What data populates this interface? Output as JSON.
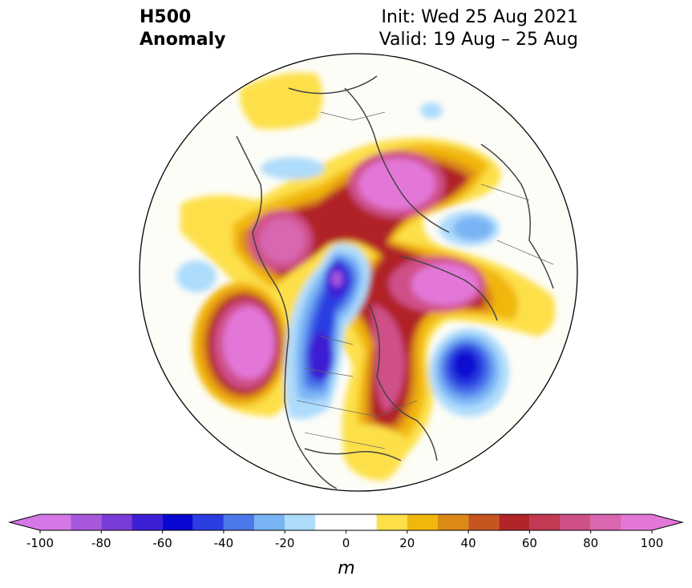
{
  "header": {
    "field_title": "H500",
    "field_subtitle": "Anomaly",
    "init_text": "Init: Wed 25 Aug 2021",
    "valid_text": "Valid: 19 Aug – 25 Aug"
  },
  "map": {
    "projection": "north-polar-stereographic"
  },
  "colorbar": {
    "levels": [
      -100,
      -90,
      -80,
      -70,
      -60,
      -50,
      -40,
      -30,
      -20,
      -10,
      10,
      20,
      30,
      40,
      50,
      60,
      70,
      80,
      90,
      100
    ],
    "colors": [
      "#d577e6",
      "#a858dc",
      "#7a3cd6",
      "#3d1fd4",
      "#0a07d2",
      "#2a3ee0",
      "#4d78ea",
      "#79b4f4",
      "#aedcfc",
      "#ffffff",
      "#fde04a",
      "#f2b70d",
      "#dc8a16",
      "#c65620",
      "#b12428",
      "#c23a54",
      "#cf5088",
      "#d866b0",
      "#e377d8"
    ],
    "tick_labels": [
      "-100",
      "-80",
      "-60",
      "-40",
      "-20",
      "0",
      "20",
      "40",
      "60",
      "80",
      "100"
    ],
    "unit_label": "m",
    "extend": "both"
  }
}
